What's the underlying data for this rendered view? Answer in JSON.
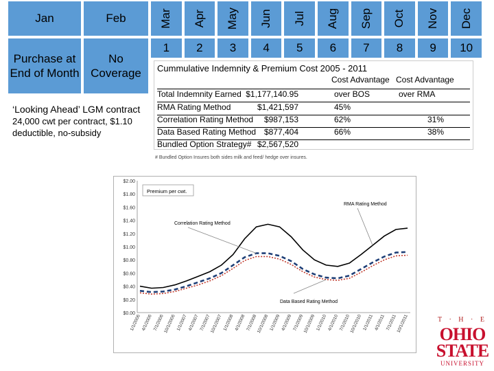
{
  "header": {
    "months": [
      "Jan",
      "Feb",
      "Mar",
      "Apr",
      "May",
      "Jun",
      "Jul",
      "Aug",
      "Sep",
      "Oct",
      "Nov",
      "Dec"
    ],
    "numbers": [
      "1",
      "2",
      "3",
      "4",
      "5",
      "6",
      "7",
      "8",
      "9",
      "10"
    ]
  },
  "left": {
    "purchase_label": "Purchase at End of Month",
    "coverage_label": "No Coverage"
  },
  "note": {
    "title": "‘Looking Ahead’ LGM contract",
    "detail": "24,000 cwt per contract, $1.10 deductible, no-subsidy"
  },
  "table": {
    "title": "Cummulative Indemnity & Premium Cost 2005 - 2011",
    "col1": "Cost Advantage",
    "col2": "Cost Advantage",
    "total_label": "Total Indemnity Earned",
    "total_value": "$1,177,140.95",
    "col1_sub": "over BOS",
    "col2_sub": "over RMA",
    "rows": [
      {
        "label": "RMA Rating Method",
        "value": "$1,421,597",
        "c1": "45%",
        "c2": ""
      },
      {
        "label": "Correlation Rating Method",
        "value": "$987,153",
        "c1": "62%",
        "c2": "31%"
      },
      {
        "label": "Data Based Rating Method",
        "value": "$877,404",
        "c1": "66%",
        "c2": "38%"
      },
      {
        "label": "Bundled Option Strategy#",
        "value": "$2,567,520",
        "c1": "",
        "c2": ""
      }
    ],
    "footnote": "# Bundled Option Insures both sides milk and feed/ hedge over insures."
  },
  "chart_data": {
    "type": "line",
    "legend": "Premium per cwt.",
    "ylim": [
      0,
      2.0
    ],
    "y_ticks": [
      "$0.00",
      "$0.20",
      "$0.40",
      "$0.60",
      "$0.80",
      "$1.00",
      "$1.20",
      "$1.40",
      "$1.60",
      "$1.80",
      "$2.00"
    ],
    "x_labels": [
      "1/1/2006",
      "4/1/2006",
      "7/1/2006",
      "10/1/2006",
      "1/1/2007",
      "4/1/2007",
      "7/1/2007",
      "10/1/2007",
      "1/1/2008",
      "4/1/2008",
      "7/1/2008",
      "10/1/2008",
      "1/1/2009",
      "4/1/2009",
      "7/1/2009",
      "10/1/2009",
      "1/1/2010",
      "4/1/2010",
      "7/1/2010",
      "10/1/2010",
      "1/1/2011",
      "4/1/2011",
      "7/1/2011",
      "10/1/2011"
    ],
    "series": [
      {
        "name": "RMA Rating Method",
        "style": "solid",
        "color": "#000000",
        "values": [
          0.4,
          0.37,
          0.38,
          0.42,
          0.48,
          0.55,
          0.62,
          0.72,
          0.88,
          1.12,
          1.3,
          1.34,
          1.3,
          1.15,
          0.95,
          0.8,
          0.72,
          0.7,
          0.75,
          0.88,
          1.02,
          1.16,
          1.26,
          1.28
        ]
      },
      {
        "name": "Correlation Rating Method",
        "style": "dashed",
        "color": "#1f3f77",
        "values": [
          0.33,
          0.31,
          0.32,
          0.35,
          0.4,
          0.46,
          0.52,
          0.6,
          0.72,
          0.84,
          0.9,
          0.9,
          0.86,
          0.78,
          0.66,
          0.58,
          0.53,
          0.52,
          0.56,
          0.66,
          0.76,
          0.85,
          0.91,
          0.92
        ]
      },
      {
        "name": "Data Based Rating Method",
        "style": "dotted",
        "color": "#c0392b",
        "values": [
          0.3,
          0.28,
          0.29,
          0.32,
          0.37,
          0.42,
          0.48,
          0.56,
          0.67,
          0.79,
          0.85,
          0.85,
          0.81,
          0.73,
          0.62,
          0.54,
          0.5,
          0.49,
          0.52,
          0.61,
          0.71,
          0.8,
          0.86,
          0.87
        ]
      }
    ]
  },
  "logo": {
    "top": "T · H · E",
    "line1": "OHIO",
    "line2": "STATE",
    "line3": "UNIVERSITY"
  }
}
